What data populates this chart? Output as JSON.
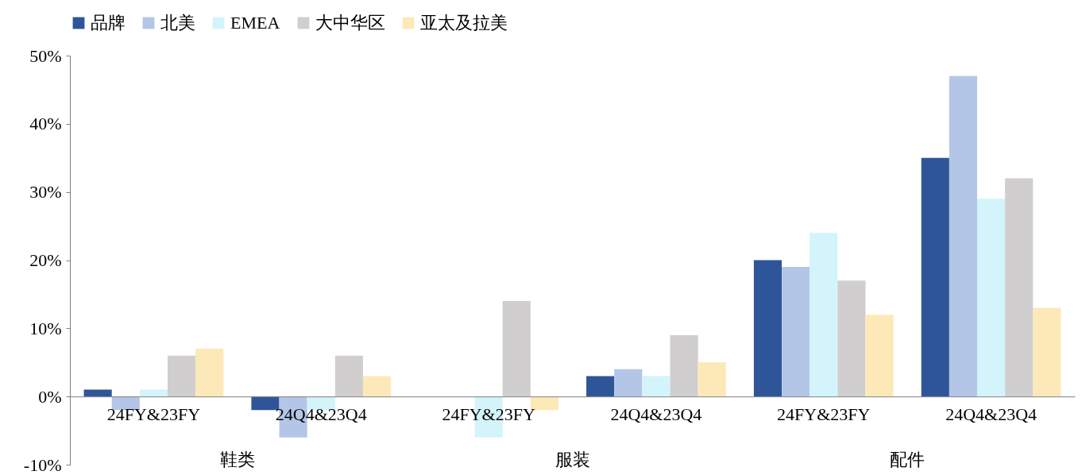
{
  "chart_data": {
    "type": "bar",
    "categories": [
      "24FY&23FY",
      "24Q4&23Q4",
      "24FY&23FY",
      "24Q4&23Q4",
      "24FY&23FY",
      "24Q4&23Q4"
    ],
    "series": [
      {
        "name": "品牌",
        "color": "#2e5597",
        "values": [
          1,
          -2,
          0,
          3,
          20,
          35
        ]
      },
      {
        "name": "北美",
        "color": "#b4c6e7",
        "values": [
          -2,
          -6,
          0,
          4,
          19,
          47
        ]
      },
      {
        "name": "EMEA",
        "color": "#d3f4fb",
        "values": [
          1,
          -2,
          -6,
          3,
          24,
          29
        ]
      },
      {
        "name": "大中华区",
        "color": "#d0cece",
        "values": [
          6,
          6,
          14,
          9,
          17,
          32
        ]
      },
      {
        "name": "亚太及拉美",
        "color": "#fde9b8",
        "values": [
          7,
          3,
          -2,
          5,
          12,
          13
        ]
      }
    ],
    "annotations": [
      "鞋类",
      "服装",
      "配件"
    ],
    "ylim": [
      -10,
      50
    ],
    "yticks": [
      {
        "value": -10,
        "label": "-10%"
      },
      {
        "value": 0,
        "label": "0%"
      },
      {
        "value": 10,
        "label": "10%"
      },
      {
        "value": 20,
        "label": "20%"
      },
      {
        "value": 30,
        "label": "30%"
      },
      {
        "value": 40,
        "label": "40%"
      },
      {
        "value": 50,
        "label": "50%"
      }
    ],
    "grid": false,
    "legend": "top"
  }
}
